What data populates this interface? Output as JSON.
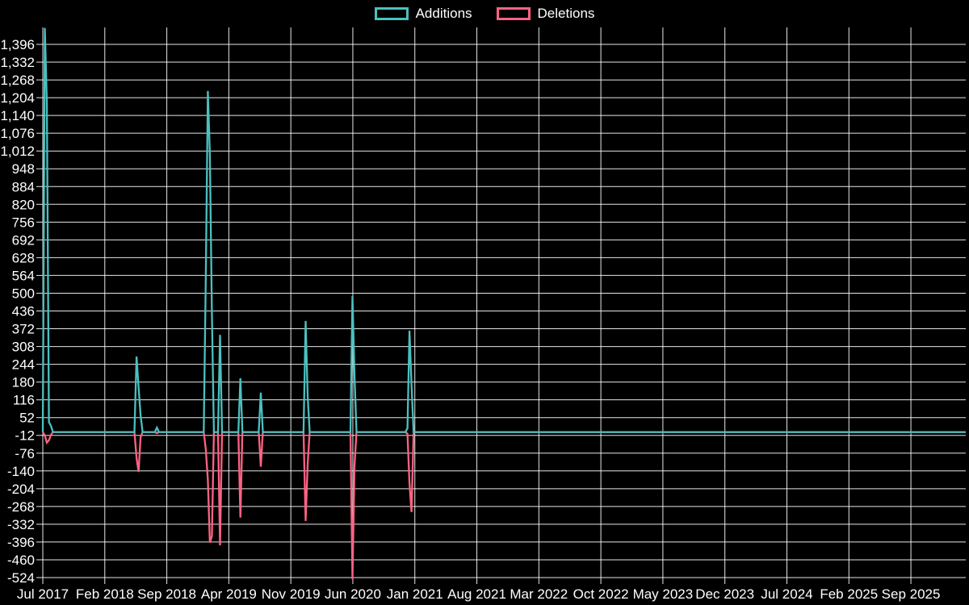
{
  "chart_data": {
    "type": "line",
    "title": "",
    "background_color": "#000000",
    "grid_color": "#ffffff",
    "text_color": "#ffffff",
    "legend_position": "top",
    "grid": true,
    "legend": [
      {
        "label": "Additions",
        "color": "#4bc0c0"
      },
      {
        "label": "Deletions",
        "color": "#ff6384"
      }
    ],
    "x_axis": {
      "start_week": "2017-07-02",
      "ticks": [
        {
          "label": "Jul 2017",
          "month": 0
        },
        {
          "label": "Feb 2018",
          "month": 7
        },
        {
          "label": "Sep 2018",
          "month": 14
        },
        {
          "label": "Apr 2019",
          "month": 21
        },
        {
          "label": "Nov 2019",
          "month": 28
        },
        {
          "label": "Jun 2020",
          "month": 35
        },
        {
          "label": "Jan 2021",
          "month": 42
        },
        {
          "label": "Aug 2021",
          "month": 49
        },
        {
          "label": "Mar 2022",
          "month": 56
        },
        {
          "label": "Oct 2022",
          "month": 63
        },
        {
          "label": "May 2023",
          "month": 70
        },
        {
          "label": "Dec 2023",
          "month": 77
        },
        {
          "label": "Jul 2024",
          "month": 84
        },
        {
          "label": "Feb 2025",
          "month": 91
        },
        {
          "label": "Sep 2025",
          "month": 98
        }
      ]
    },
    "y_axis": {
      "min": -524,
      "max": 1396,
      "step": 64,
      "ticks": [
        {
          "value": 1396,
          "label": "1,396"
        },
        {
          "value": 1332,
          "label": "1,332"
        },
        {
          "value": 1268,
          "label": "1,268"
        },
        {
          "value": 1204,
          "label": "1,204"
        },
        {
          "value": 1140,
          "label": "1,140"
        },
        {
          "value": 1076,
          "label": "1,076"
        },
        {
          "value": 1012,
          "label": "1,012"
        },
        {
          "value": 948,
          "label": "948"
        },
        {
          "value": 884,
          "label": "884"
        },
        {
          "value": 820,
          "label": "820"
        },
        {
          "value": 756,
          "label": "756"
        },
        {
          "value": 692,
          "label": "692"
        },
        {
          "value": 628,
          "label": "628"
        },
        {
          "value": 564,
          "label": "564"
        },
        {
          "value": 500,
          "label": "500"
        },
        {
          "value": 436,
          "label": "436"
        },
        {
          "value": 372,
          "label": "372"
        },
        {
          "value": 308,
          "label": "308"
        },
        {
          "value": 244,
          "label": "244"
        },
        {
          "value": 180,
          "label": "180"
        },
        {
          "value": 116,
          "label": "116"
        },
        {
          "value": 52,
          "label": "52"
        },
        {
          "value": -12,
          "label": "-12"
        },
        {
          "value": -76,
          "label": "-76"
        },
        {
          "value": -140,
          "label": "-140"
        },
        {
          "value": -204,
          "label": "-204"
        },
        {
          "value": -268,
          "label": "-268"
        },
        {
          "value": -332,
          "label": "-332"
        },
        {
          "value": -396,
          "label": "-396"
        },
        {
          "value": -460,
          "label": "-460"
        },
        {
          "value": -524,
          "label": "-524"
        }
      ]
    },
    "baseline_value": 0,
    "events": [
      {
        "week": "2017-07-09",
        "additions": 1455,
        "deletions": -12
      },
      {
        "week": "2017-07-16",
        "additions": 1190,
        "deletions": -38
      },
      {
        "week": "2017-07-23",
        "additions": 36,
        "deletions": -30
      },
      {
        "week": "2017-07-30",
        "additions": 22,
        "deletions": -10
      },
      {
        "week": "2018-05-20",
        "additions": 272,
        "deletions": -93
      },
      {
        "week": "2018-05-27",
        "additions": 162,
        "deletions": -143
      },
      {
        "week": "2018-06-03",
        "additions": 60,
        "deletions": -18
      },
      {
        "week": "2018-07-29",
        "additions": 16,
        "deletions": -4
      },
      {
        "week": "2019-01-13",
        "additions": 545,
        "deletions": -60
      },
      {
        "week": "2019-01-20",
        "additions": 1228,
        "deletions": -172
      },
      {
        "week": "2019-01-27",
        "additions": 1000,
        "deletions": -398
      },
      {
        "week": "2019-02-03",
        "additions": 430,
        "deletions": -375
      },
      {
        "week": "2019-03-03",
        "additions": 350,
        "deletions": -408
      },
      {
        "week": "2019-05-12",
        "additions": 194,
        "deletions": -308
      },
      {
        "week": "2019-07-21",
        "additions": 142,
        "deletions": -125
      },
      {
        "week": "2019-12-22",
        "additions": 400,
        "deletions": -320
      },
      {
        "week": "2019-12-29",
        "additions": 130,
        "deletions": -115
      },
      {
        "week": "2020-05-31",
        "additions": 490,
        "deletions": -530
      },
      {
        "week": "2020-06-07",
        "additions": 205,
        "deletions": -122
      },
      {
        "week": "2020-12-06",
        "additions": 14,
        "deletions": -6
      },
      {
        "week": "2020-12-13",
        "additions": 365,
        "deletions": -185
      },
      {
        "week": "2020-12-20",
        "additions": 170,
        "deletions": -288
      }
    ]
  }
}
